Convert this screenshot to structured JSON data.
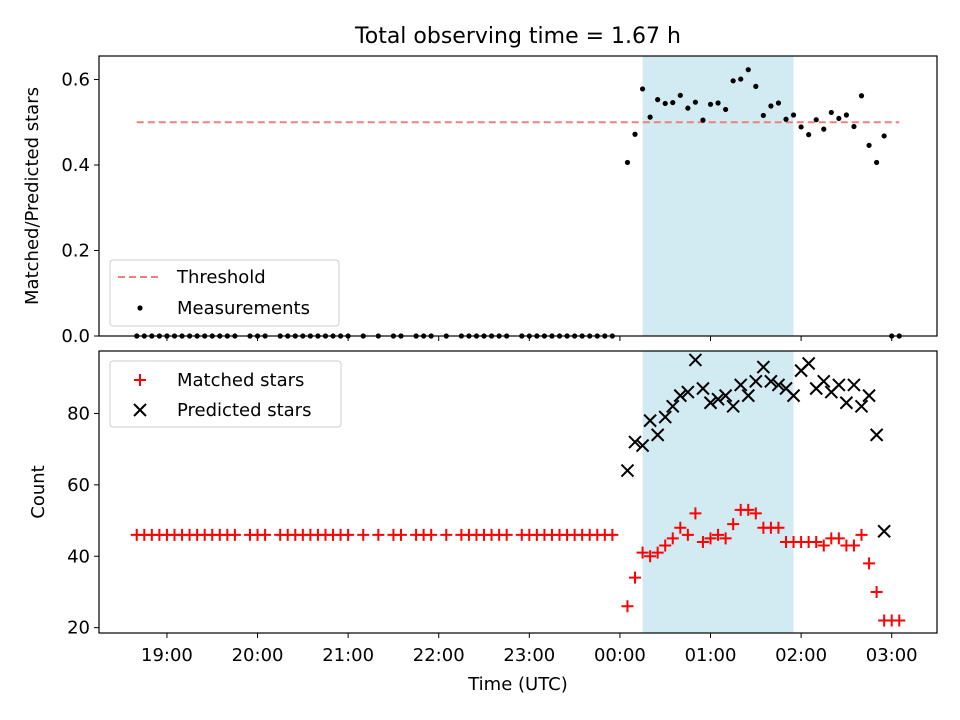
{
  "figure": {
    "title": "Total observing time = 1.67 h",
    "xlabel": "Time (UTC)",
    "x_tick_labels": [
      "19:00",
      "20:00",
      "21:00",
      "22:00",
      "23:00",
      "00:00",
      "01:00",
      "02:00",
      "03:00"
    ],
    "highlight_color": "#add8e6",
    "highlight_span": [
      "00:15",
      "01:55"
    ]
  },
  "chart_data": [
    {
      "type": "scatter",
      "ylabel": "Matched/Predicted stars",
      "ylim": [
        0,
        0.655
      ],
      "yticks": [
        "0.0",
        "0.2",
        "0.4",
        "0.6"
      ],
      "legend_position": "lower-left",
      "threshold": {
        "name": "Threshold",
        "value": 0.5,
        "x_range": [
          "18:40",
          "03:05"
        ],
        "color": "#f08080"
      },
      "series": [
        {
          "name": "Measurements",
          "color": "#000000",
          "marker": "dot",
          "x": [
            "18:40",
            "18:45",
            "18:50",
            "18:55",
            "19:00",
            "19:05",
            "19:10",
            "19:15",
            "19:20",
            "19:25",
            "19:30",
            "19:35",
            "19:40",
            "19:45",
            "19:55",
            "20:00",
            "20:05",
            "20:15",
            "20:20",
            "20:25",
            "20:30",
            "20:35",
            "20:40",
            "20:45",
            "20:50",
            "20:55",
            "21:00",
            "21:10",
            "21:20",
            "21:30",
            "21:35",
            "21:45",
            "21:50",
            "21:55",
            "22:05",
            "22:15",
            "22:20",
            "22:25",
            "22:30",
            "22:35",
            "22:40",
            "22:45",
            "22:55",
            "23:00",
            "23:05",
            "23:10",
            "23:15",
            "23:20",
            "23:25",
            "23:30",
            "23:35",
            "23:40",
            "23:45",
            "23:50",
            "23:55",
            "00:05",
            "00:10",
            "00:15",
            "00:20",
            "00:25",
            "00:30",
            "00:35",
            "00:40",
            "00:45",
            "00:50",
            "00:55",
            "01:00",
            "01:05",
            "01:10",
            "01:15",
            "01:20",
            "01:25",
            "01:30",
            "01:35",
            "01:40",
            "01:45",
            "01:50",
            "01:55",
            "02:00",
            "02:05",
            "02:10",
            "02:15",
            "02:20",
            "02:25",
            "02:30",
            "02:35",
            "02:40",
            "02:45",
            "02:50",
            "02:55",
            "03:00",
            "03:05"
          ],
          "y": [
            0,
            0,
            0,
            0,
            0,
            0,
            0,
            0,
            0,
            0,
            0,
            0,
            0,
            0,
            0,
            0,
            0,
            0,
            0,
            0,
            0,
            0,
            0,
            0,
            0,
            0,
            0,
            0,
            0,
            0,
            0,
            0,
            0,
            0,
            0,
            0,
            0,
            0,
            0,
            0,
            0,
            0,
            0,
            0,
            0,
            0,
            0,
            0,
            0,
            0,
            0,
            0,
            0,
            0,
            0,
            0.406,
            0.472,
            0.578,
            0.512,
            0.553,
            0.544,
            0.546,
            0.563,
            0.533,
            0.547,
            0.505,
            0.542,
            0.545,
            0.53,
            0.597,
            0.601,
            0.623,
            0.584,
            0.516,
            0.538,
            0.545,
            0.507,
            0.517,
            0.489,
            0.471,
            0.506,
            0.484,
            0.523,
            0.509,
            0.517,
            0.49,
            0.562,
            0.446,
            0.406,
            0.468,
            0,
            0
          ]
        }
      ]
    },
    {
      "type": "scatter",
      "ylabel": "Count",
      "ylim": [
        18.5,
        97.5
      ],
      "yticks": [
        "20",
        "40",
        "60",
        "80"
      ],
      "legend_position": "upper-left",
      "series": [
        {
          "name": "Matched stars",
          "color": "#ff0000",
          "marker": "plus",
          "x": [
            "18:40",
            "18:45",
            "18:50",
            "18:55",
            "19:00",
            "19:05",
            "19:10",
            "19:15",
            "19:20",
            "19:25",
            "19:30",
            "19:35",
            "19:40",
            "19:45",
            "19:55",
            "20:00",
            "20:05",
            "20:15",
            "20:20",
            "20:25",
            "20:30",
            "20:35",
            "20:40",
            "20:45",
            "20:50",
            "20:55",
            "21:00",
            "21:10",
            "21:20",
            "21:30",
            "21:35",
            "21:45",
            "21:50",
            "21:55",
            "22:05",
            "22:15",
            "22:20",
            "22:25",
            "22:30",
            "22:35",
            "22:40",
            "22:45",
            "22:55",
            "23:00",
            "23:05",
            "23:10",
            "23:15",
            "23:20",
            "23:25",
            "23:30",
            "23:35",
            "23:40",
            "23:45",
            "23:50",
            "23:55",
            "00:05",
            "00:10",
            "00:15",
            "00:20",
            "00:25",
            "00:30",
            "00:35",
            "00:40",
            "00:45",
            "00:50",
            "00:55",
            "01:00",
            "01:05",
            "01:10",
            "01:15",
            "01:20",
            "01:25",
            "01:30",
            "01:35",
            "01:40",
            "01:45",
            "01:50",
            "01:55",
            "02:00",
            "02:05",
            "02:10",
            "02:15",
            "02:20",
            "02:25",
            "02:30",
            "02:35",
            "02:40",
            "02:45",
            "02:50",
            "02:55",
            "03:00",
            "03:05"
          ],
          "y": [
            46,
            46,
            46,
            46,
            46,
            46,
            46,
            46,
            46,
            46,
            46,
            46,
            46,
            46,
            46,
            46,
            46,
            46,
            46,
            46,
            46,
            46,
            46,
            46,
            46,
            46,
            46,
            46,
            46,
            46,
            46,
            46,
            46,
            46,
            46,
            46,
            46,
            46,
            46,
            46,
            46,
            46,
            46,
            46,
            46,
            46,
            46,
            46,
            46,
            46,
            46,
            46,
            46,
            46,
            46,
            26,
            34,
            41,
            40,
            41,
            43,
            45,
            48,
            46,
            52,
            44,
            45,
            46,
            45,
            49,
            53,
            53,
            52,
            48,
            48,
            48,
            44,
            44,
            44,
            44,
            44,
            43,
            45,
            45,
            43,
            43,
            46,
            38,
            30,
            22,
            22,
            22
          ]
        },
        {
          "name": "Predicted stars",
          "color": "#000000",
          "marker": "x",
          "x": [
            "00:05",
            "00:10",
            "00:15",
            "00:20",
            "00:25",
            "00:30",
            "00:35",
            "00:40",
            "00:45",
            "00:50",
            "00:55",
            "01:00",
            "01:05",
            "01:10",
            "01:15",
            "01:20",
            "01:25",
            "01:30",
            "01:35",
            "01:40",
            "01:45",
            "01:50",
            "01:55",
            "02:00",
            "02:05",
            "02:10",
            "02:15",
            "02:20",
            "02:25",
            "02:30",
            "02:35",
            "02:40",
            "02:45",
            "02:50",
            "02:55"
          ],
          "y": [
            64,
            72,
            71,
            78,
            74,
            79,
            82,
            85,
            86,
            95,
            87,
            83,
            84,
            85,
            82,
            88,
            85,
            89,
            93,
            89,
            88,
            87,
            85,
            92,
            94,
            87,
            89,
            86,
            88,
            83,
            88,
            82,
            85,
            74,
            47
          ]
        }
      ]
    }
  ]
}
